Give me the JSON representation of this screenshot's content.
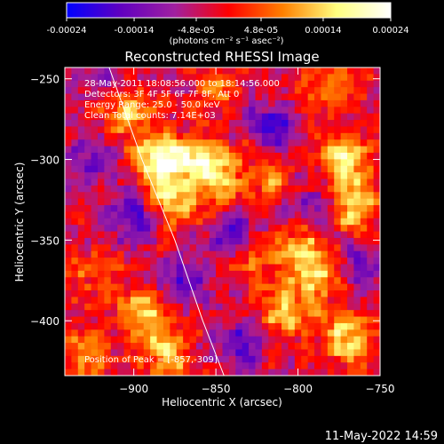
{
  "colorbar": {
    "ticks": [
      "-0.00024",
      "-0.00014",
      "-4.8e-05",
      "4.8e-05",
      "0.00014",
      "0.00024"
    ],
    "tick_values": [
      -0.00024,
      -0.00014,
      -4.8e-05,
      4.8e-05,
      0.00014,
      0.00024
    ],
    "range": [
      -0.00024,
      0.00024
    ],
    "units": "(photons cm⁻² s⁻¹ asec⁻²)",
    "colors": [
      "#0000ff",
      "#6000c0",
      "#a020a0",
      "#ff0000",
      "#ff8000",
      "#ffff80",
      "#ffffff"
    ]
  },
  "chart_data": {
    "type": "heatmap",
    "title": "Reconstructed RHESSI Image",
    "xlabel": "Heliocentric X (arcsec)",
    "ylabel": "Heliocentric Y (arcsec)",
    "xlim": [
      -942,
      -750
    ],
    "ylim": [
      -434,
      -243
    ],
    "xticks": [
      -900,
      -850,
      -800,
      -750
    ],
    "yticks": [
      -250,
      -300,
      -350,
      -400
    ],
    "xtick_labels": [
      "−900",
      "−850",
      "−800",
      "−750"
    ],
    "ytick_labels": [
      "−250",
      "−300",
      "−350",
      "−400"
    ],
    "annotations": [
      "28-May-2011 18:08:56.000 to 18:14:56.000",
      "Detectors: 3F 4F 5F 6F 7F 8F, Att 0",
      "Energy Range: 25.0 - 50.0 keV",
      "Clean    Total counts: 7.14E+03"
    ],
    "peak_label": "Position of Peak = [-857,-309]",
    "limb_curve": [
      [
        -915,
        -243
      ],
      [
        -895,
        -300
      ],
      [
        -875,
        -350
      ],
      [
        -858,
        -400
      ],
      [
        -845,
        -434
      ]
    ],
    "hotspots": [
      {
        "x": -885,
        "y": -300,
        "v": 0.00024
      },
      {
        "x": -880,
        "y": -325,
        "v": 0.00018
      },
      {
        "x": -905,
        "y": -270,
        "v": 0.00015
      },
      {
        "x": -860,
        "y": -300,
        "v": 0.00016
      },
      {
        "x": -850,
        "y": -315,
        "v": 0.00014
      },
      {
        "x": -770,
        "y": -300,
        "v": 0.0002
      },
      {
        "x": -765,
        "y": -330,
        "v": 0.00018
      },
      {
        "x": -820,
        "y": -310,
        "v": 0.00012
      },
      {
        "x": -800,
        "y": -355,
        "v": 0.00015
      },
      {
        "x": -790,
        "y": -375,
        "v": 0.00016
      },
      {
        "x": -810,
        "y": -395,
        "v": 0.00014
      },
      {
        "x": -770,
        "y": -410,
        "v": 0.00017
      },
      {
        "x": -830,
        "y": -360,
        "v": 0.0001
      },
      {
        "x": -895,
        "y": -395,
        "v": 0.00016
      },
      {
        "x": -880,
        "y": -420,
        "v": 0.00015
      },
      {
        "x": -930,
        "y": -420,
        "v": 0.00012
      },
      {
        "x": -930,
        "y": -370,
        "v": 8e-05
      },
      {
        "x": -850,
        "y": -260,
        "v": 9e-05
      },
      {
        "x": -780,
        "y": -255,
        "v": 0.0001
      }
    ],
    "coldspots": [
      {
        "x": -900,
        "y": -335,
        "v": -0.00016
      },
      {
        "x": -840,
        "y": -345,
        "v": -0.00014
      },
      {
        "x": -815,
        "y": -280,
        "v": -0.00015
      },
      {
        "x": -925,
        "y": -300,
        "v": -0.00012
      },
      {
        "x": -870,
        "y": -375,
        "v": -0.00013
      },
      {
        "x": -835,
        "y": -415,
        "v": -0.00012
      },
      {
        "x": -760,
        "y": -365,
        "v": -0.00011
      },
      {
        "x": -790,
        "y": -330,
        "v": -0.0001
      },
      {
        "x": -920,
        "y": -250,
        "v": -9e-05
      }
    ]
  },
  "footer": {
    "timestamp": "11-May-2022 14:59"
  }
}
